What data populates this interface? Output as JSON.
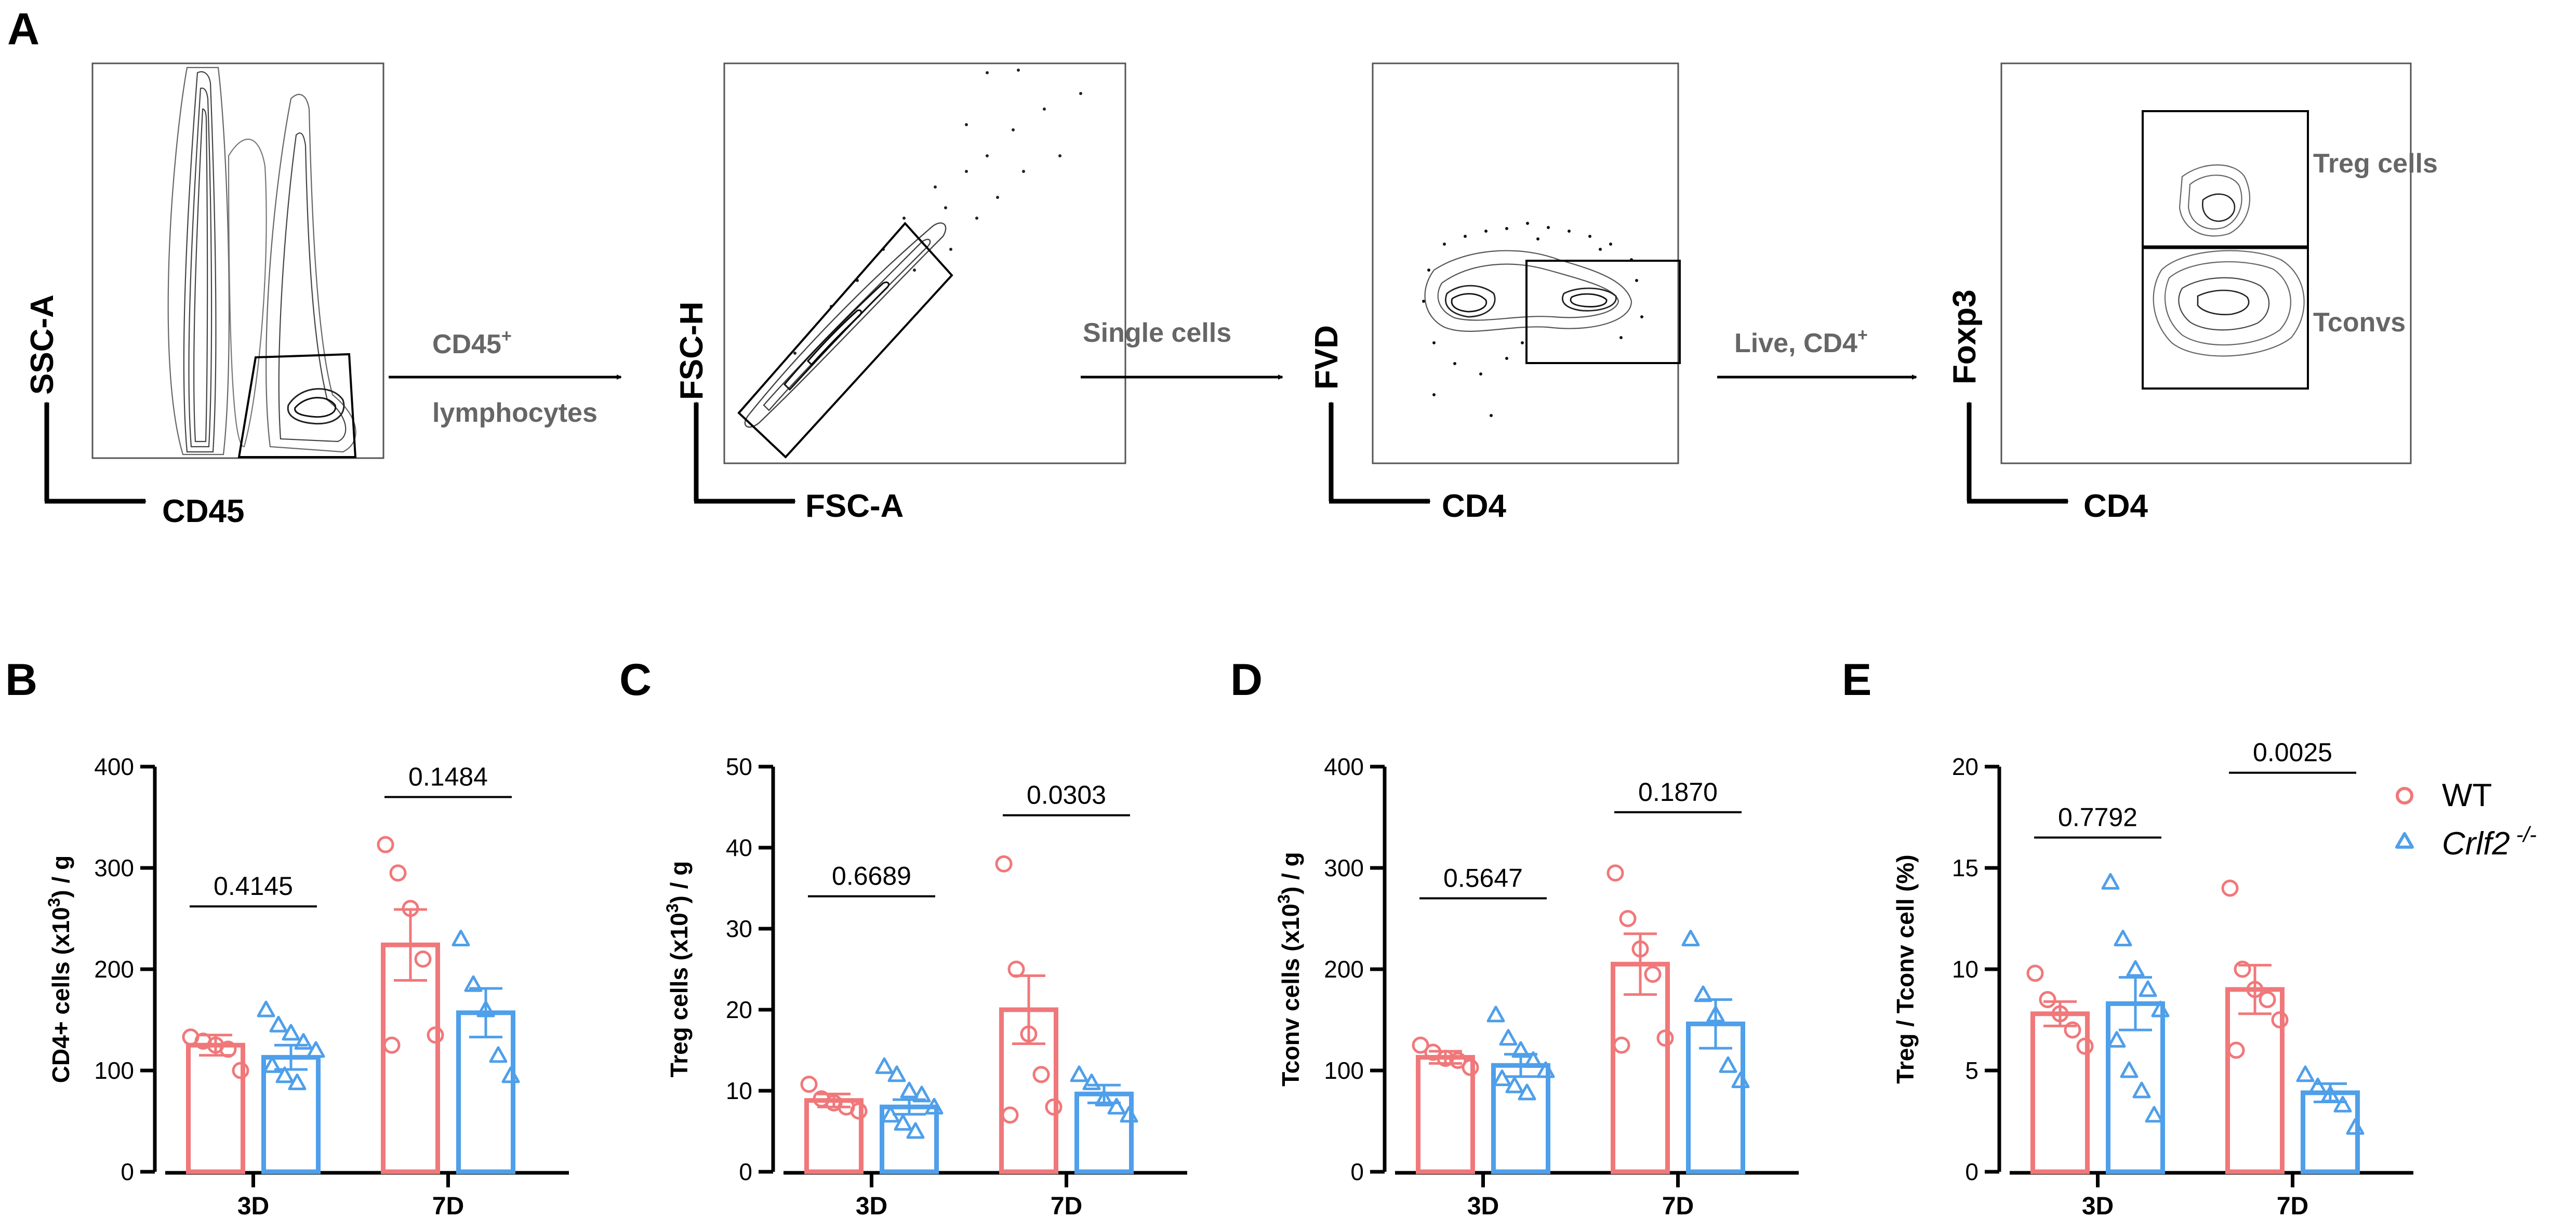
{
  "figure": {
    "panel_a": {
      "letter": "A",
      "plots": [
        {
          "x_label": "CD45",
          "y_label": "SSC-A",
          "gate_label": ""
        },
        {
          "x_label": "FSC-A",
          "y_label": "FSC-H",
          "gate_label": ""
        },
        {
          "x_label": "CD4",
          "y_label": "FVD",
          "gate_label": ""
        },
        {
          "x_label": "CD4",
          "y_label": "Foxp3",
          "gate_label_top": "Treg cells",
          "gate_label_bottom": "Tconvs"
        }
      ],
      "arrows": [
        {
          "line1": "CD45",
          "line1_sup": "+",
          "line2": "lymphocytes"
        },
        {
          "line1": "Single cells",
          "line1_sup": "",
          "line2": ""
        },
        {
          "line1": "Live, CD4",
          "line1_sup": "+",
          "line2": ""
        }
      ]
    },
    "legend": {
      "wt": "WT",
      "ko_name": "Crlf2",
      "ko_sup": " -/-"
    },
    "colors": {
      "wt": "#f0787a",
      "ko": "#4f9fea"
    }
  },
  "chart_data": [
    {
      "letter": "B",
      "type": "bar",
      "ylabel": "CD4+ cells (x10",
      "ylabel_sup": "3",
      "ylabel_end": ") / g",
      "ylim": [
        0,
        400
      ],
      "yticks": [
        "0",
        "100",
        "200",
        "300",
        "400"
      ],
      "categories": [
        "3D",
        "7D"
      ],
      "series": [
        {
          "name": "WT",
          "means": [
            125,
            224
          ],
          "sem": [
            10,
            35
          ],
          "points": [
            [
              133,
              129,
              125,
              121,
              100
            ],
            [
              323,
              295,
              260,
              210,
              135,
              125
            ]
          ]
        },
        {
          "name": "Crlf2 -/-",
          "means": [
            113,
            157
          ],
          "sem": [
            12,
            24
          ],
          "points": [
            [
              160,
              145,
              137,
              128,
              120,
              105,
              95,
              88
            ],
            [
              230,
              185,
              160,
              115,
              95
            ]
          ]
        }
      ],
      "pvalues": [
        "0.4145",
        "0.1484"
      ],
      "pvalue_y": [
        262,
        370
      ]
    },
    {
      "letter": "C",
      "type": "bar",
      "ylabel": "Treg cells (x10",
      "ylabel_sup": "3",
      "ylabel_end": ") / g",
      "ylim": [
        0,
        50
      ],
      "yticks": [
        "0",
        "10",
        "20",
        "30",
        "40",
        "50"
      ],
      "categories": [
        "3D",
        "7D"
      ],
      "series": [
        {
          "name": "WT",
          "means": [
            8.8,
            20
          ],
          "sem": [
            0.8,
            4.2
          ],
          "points": [
            [
              10.8,
              9,
              8.5,
              8,
              7.5
            ],
            [
              38,
              25,
              17,
              12,
              8,
              7
            ]
          ]
        },
        {
          "name": "Crlf2 -/-",
          "means": [
            8,
            9.6
          ],
          "sem": [
            0.9,
            1.1
          ],
          "points": [
            [
              13,
              12,
              10,
              9.5,
              8,
              7,
              6,
              5
            ],
            [
              12,
              11,
              9,
              8,
              7
            ]
          ]
        }
      ],
      "pvalues": [
        "0.6689",
        "0.0303"
      ],
      "pvalue_y": [
        34,
        44
      ]
    },
    {
      "letter": "D",
      "type": "bar",
      "ylabel": "Tconv cells (x10",
      "ylabel_sup": "3",
      "ylabel_end": ") / g",
      "ylim": [
        0,
        400
      ],
      "yticks": [
        "0",
        "100",
        "200",
        "300",
        "400"
      ],
      "categories": [
        "3D",
        "7D"
      ],
      "series": [
        {
          "name": "WT",
          "means": [
            113,
            205
          ],
          "sem": [
            6,
            30
          ],
          "points": [
            [
              125,
              118,
              112,
              110,
              103
            ],
            [
              295,
              250,
              220,
              195,
              132,
              125
            ]
          ]
        },
        {
          "name": "Crlf2 -/-",
          "means": [
            105,
            146
          ],
          "sem": [
            11,
            24
          ],
          "points": [
            [
              155,
              132,
              120,
              110,
              100,
              92,
              85,
              78
            ],
            [
              230,
              175,
              155,
              105,
              90
            ]
          ]
        }
      ],
      "pvalue_y": [
        270,
        355
      ],
      "pvalues": [
        "0.5647",
        "0.1870"
      ]
    },
    {
      "letter": "E",
      "type": "bar",
      "ylabel": "Treg / Tconv cell (%)",
      "ylabel_sup": "",
      "ylabel_end": "",
      "ylim": [
        0,
        20
      ],
      "yticks": [
        "0",
        "5",
        "10",
        "15",
        "20"
      ],
      "categories": [
        "3D",
        "7D"
      ],
      "series": [
        {
          "name": "WT",
          "means": [
            7.8,
            9
          ],
          "sem": [
            0.6,
            1.2
          ],
          "points": [
            [
              9.8,
              8.5,
              7.8,
              7,
              6.2
            ],
            [
              14,
              10,
              9,
              8.5,
              7.5,
              6
            ]
          ]
        },
        {
          "name": "Crlf2 -/-",
          "means": [
            8.3,
            3.9
          ],
          "sem": [
            1.3,
            0.45
          ],
          "points": [
            [
              14.3,
              11.5,
              10,
              9,
              8,
              6.5,
              5,
              4,
              2.8
            ],
            [
              4.8,
              4.2,
              3.8,
              3.3,
              2.2
            ]
          ]
        }
      ],
      "pvalues": [
        "0.7792",
        "0.0025"
      ],
      "pvalue_y": [
        16.5,
        19.7
      ]
    }
  ]
}
